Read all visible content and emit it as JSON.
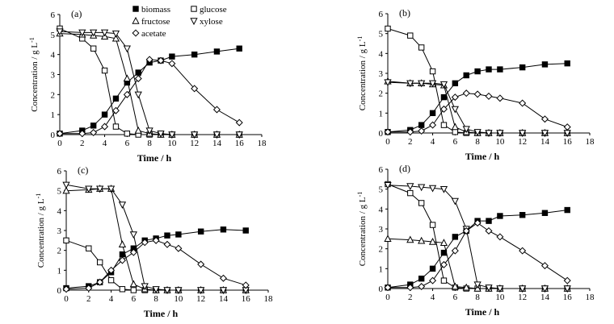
{
  "chart_data": [
    {
      "type": "line",
      "panel_label": "(a)",
      "xlabel": "Time / h",
      "ylabel": "Concentration / g L",
      "ylabel_exponent": "-1",
      "xlim": [
        0,
        18
      ],
      "ylim": [
        0,
        6
      ],
      "x_ticks": [
        0,
        2,
        4,
        6,
        8,
        10,
        12,
        14,
        16,
        18
      ],
      "y_ticks": [
        0,
        1,
        2,
        3,
        4,
        5,
        6
      ],
      "legend": [
        {
          "name": "biomass",
          "marker": "square-filled"
        },
        {
          "name": "glucose",
          "marker": "square-open"
        },
        {
          "name": "fructose",
          "marker": "triangle-up"
        },
        {
          "name": "xylose",
          "marker": "triangle-down"
        },
        {
          "name": "acetate",
          "marker": "diamond"
        }
      ],
      "series": [
        {
          "name": "biomass",
          "marker": "square-filled",
          "x": [
            0,
            2,
            3,
            4,
            5,
            6,
            7,
            8,
            9,
            10,
            12,
            14,
            16
          ],
          "values": [
            0.05,
            0.2,
            0.45,
            1.0,
            1.8,
            2.6,
            3.1,
            3.6,
            3.7,
            3.9,
            4.0,
            4.15,
            4.3
          ]
        },
        {
          "name": "glucose",
          "marker": "square-open",
          "x": [
            0,
            2,
            3,
            4,
            5,
            6,
            7,
            8,
            9,
            10,
            12,
            14,
            16
          ],
          "values": [
            5.3,
            4.8,
            4.3,
            3.2,
            0.4,
            0.05,
            0,
            0,
            0,
            0,
            0,
            0,
            0
          ]
        },
        {
          "name": "fructose",
          "marker": "triangle-up",
          "x": [
            0,
            2,
            3,
            4,
            5,
            6,
            7,
            8,
            9,
            10,
            12,
            14,
            16
          ],
          "values": [
            5.05,
            5.0,
            4.95,
            4.9,
            4.8,
            2.8,
            0.2,
            0.05,
            0,
            0,
            0,
            0,
            0
          ]
        },
        {
          "name": "xylose",
          "marker": "triangle-down",
          "x": [
            0,
            2,
            3,
            4,
            5,
            6,
            7,
            8,
            9,
            10,
            12,
            14,
            16
          ],
          "values": [
            5.15,
            5.1,
            5.1,
            5.1,
            5.05,
            4.3,
            2.0,
            0.2,
            0.05,
            0,
            0,
            0,
            0
          ]
        },
        {
          "name": "acetate",
          "marker": "diamond",
          "x": [
            0,
            2,
            3,
            4,
            5,
            6,
            7,
            8,
            9,
            10,
            12,
            14,
            16
          ],
          "values": [
            0.05,
            0.05,
            0.1,
            0.4,
            1.2,
            2.0,
            2.8,
            3.75,
            3.7,
            3.55,
            2.3,
            1.25,
            0.6
          ]
        }
      ]
    },
    {
      "type": "line",
      "panel_label": "(b)",
      "xlabel": "Time / h",
      "ylabel": "Concentration / g L",
      "ylabel_exponent": "-1",
      "xlim": [
        0,
        18
      ],
      "ylim": [
        0,
        6
      ],
      "x_ticks": [
        0,
        2,
        4,
        6,
        8,
        10,
        12,
        14,
        16,
        18
      ],
      "y_ticks": [
        0,
        1,
        2,
        3,
        4,
        5,
        6
      ],
      "series": [
        {
          "name": "biomass",
          "marker": "square-filled",
          "x": [
            0,
            2,
            3,
            4,
            5,
            6,
            7,
            8,
            9,
            10,
            12,
            14,
            16
          ],
          "values": [
            0.05,
            0.15,
            0.4,
            1.0,
            1.8,
            2.5,
            2.9,
            3.1,
            3.2,
            3.2,
            3.3,
            3.45,
            3.5
          ]
        },
        {
          "name": "glucose",
          "marker": "square-open",
          "x": [
            0,
            2,
            3,
            4,
            5,
            6,
            7,
            8,
            9,
            10,
            12,
            14,
            16
          ],
          "values": [
            5.25,
            4.9,
            4.3,
            3.1,
            0.4,
            0.05,
            0,
            0,
            0,
            0,
            0,
            0,
            0
          ]
        },
        {
          "name": "fructose",
          "marker": "triangle-up",
          "x": [
            0,
            2,
            3,
            4,
            5,
            6,
            7,
            8,
            9,
            10,
            12,
            14,
            16
          ],
          "values": [
            2.6,
            2.5,
            2.5,
            2.45,
            2.4,
            0.3,
            0.05,
            0,
            0,
            0,
            0,
            0,
            0
          ]
        },
        {
          "name": "xylose",
          "marker": "triangle-down",
          "x": [
            0,
            2,
            3,
            4,
            5,
            6,
            7,
            8,
            9,
            10,
            12,
            14,
            16
          ],
          "values": [
            2.55,
            2.5,
            2.5,
            2.5,
            2.45,
            1.2,
            0.2,
            0.05,
            0,
            0,
            0,
            0,
            0
          ]
        },
        {
          "name": "acetate",
          "marker": "diamond",
          "x": [
            0,
            2,
            3,
            4,
            5,
            6,
            7,
            8,
            9,
            10,
            12,
            14,
            16
          ],
          "values": [
            0.05,
            0.05,
            0.1,
            0.4,
            1.2,
            1.8,
            2.0,
            1.95,
            1.85,
            1.75,
            1.5,
            0.7,
            0.3
          ]
        }
      ]
    },
    {
      "type": "line",
      "panel_label": "(c)",
      "xlabel": "Time / h",
      "ylabel": "Concentration / g L",
      "ylabel_exponent": "-1",
      "xlim": [
        0,
        18
      ],
      "ylim": [
        0,
        6
      ],
      "x_ticks": [
        0,
        2,
        4,
        6,
        8,
        10,
        12,
        14,
        16,
        18
      ],
      "y_ticks": [
        0,
        1,
        2,
        3,
        4,
        5,
        6
      ],
      "series": [
        {
          "name": "biomass",
          "marker": "square-filled",
          "x": [
            0,
            2,
            3,
            4,
            5,
            6,
            7,
            8,
            9,
            10,
            12,
            14,
            16
          ],
          "values": [
            0.1,
            0.2,
            0.4,
            0.9,
            1.8,
            2.1,
            2.5,
            2.6,
            2.75,
            2.8,
            2.95,
            3.05,
            3.0
          ]
        },
        {
          "name": "glucose",
          "marker": "square-open",
          "x": [
            0,
            2,
            3,
            4,
            5,
            6,
            7,
            8,
            9,
            10,
            12,
            14,
            16
          ],
          "values": [
            2.5,
            2.1,
            1.4,
            0.5,
            0.05,
            0,
            0,
            0,
            0,
            0,
            0,
            0,
            0
          ]
        },
        {
          "name": "fructose",
          "marker": "triangle-up",
          "x": [
            0,
            2,
            3,
            4,
            5,
            6,
            7,
            8,
            9,
            10,
            12,
            14,
            16
          ],
          "values": [
            5.0,
            5.05,
            5.1,
            5.1,
            2.3,
            0.3,
            0.05,
            0,
            0,
            0,
            0,
            0,
            0
          ]
        },
        {
          "name": "xylose",
          "marker": "triangle-down",
          "x": [
            0,
            2,
            3,
            4,
            5,
            6,
            7,
            8,
            9,
            10,
            12,
            14,
            16
          ],
          "values": [
            5.3,
            5.1,
            5.1,
            5.1,
            4.3,
            2.8,
            0.2,
            0.05,
            0,
            0,
            0,
            0,
            0
          ]
        },
        {
          "name": "acetate",
          "marker": "diamond",
          "x": [
            0,
            2,
            3,
            4,
            5,
            6,
            7,
            8,
            9,
            10,
            12,
            14,
            16
          ],
          "values": [
            0.05,
            0.1,
            0.4,
            1.0,
            1.5,
            1.9,
            2.4,
            2.5,
            2.3,
            2.1,
            1.3,
            0.6,
            0.25
          ]
        }
      ]
    },
    {
      "type": "line",
      "panel_label": "(d)",
      "xlabel": "Time / h",
      "ylabel": "Concentration / g L",
      "ylabel_exponent": "-1",
      "xlim": [
        0,
        18
      ],
      "ylim": [
        0,
        6
      ],
      "x_ticks": [
        0,
        2,
        4,
        6,
        8,
        10,
        12,
        14,
        16,
        18
      ],
      "y_ticks": [
        0,
        1,
        2,
        3,
        4,
        5,
        6
      ],
      "series": [
        {
          "name": "biomass",
          "marker": "square-filled",
          "x": [
            0,
            2,
            3,
            4,
            5,
            6,
            7,
            8,
            9,
            10,
            12,
            14,
            16
          ],
          "values": [
            0.05,
            0.2,
            0.5,
            1.0,
            1.8,
            2.6,
            2.9,
            3.4,
            3.4,
            3.65,
            3.7,
            3.8,
            3.95
          ]
        },
        {
          "name": "glucose",
          "marker": "square-open",
          "x": [
            0,
            2,
            3,
            4,
            5,
            6,
            7,
            8,
            9,
            10,
            12,
            14,
            16
          ],
          "values": [
            5.25,
            4.8,
            4.3,
            3.2,
            0.4,
            0.05,
            0,
            0,
            0,
            0,
            0,
            0,
            0
          ]
        },
        {
          "name": "fructose",
          "marker": "triangle-up",
          "x": [
            0,
            2,
            3,
            4,
            5,
            6,
            7,
            8,
            9,
            10,
            12,
            14,
            16
          ],
          "values": [
            2.5,
            2.45,
            2.4,
            2.35,
            2.3,
            0.1,
            0.05,
            0,
            0,
            0,
            0,
            0,
            0
          ]
        },
        {
          "name": "xylose",
          "marker": "triangle-down",
          "x": [
            0,
            2,
            3,
            4,
            5,
            6,
            7,
            8,
            9,
            10,
            12,
            14,
            16
          ],
          "values": [
            5.2,
            5.15,
            5.1,
            5.05,
            5.0,
            4.4,
            3.0,
            0.2,
            0.05,
            0,
            0,
            0,
            0
          ]
        },
        {
          "name": "acetate",
          "marker": "diamond",
          "x": [
            0,
            2,
            3,
            4,
            5,
            6,
            7,
            8,
            9,
            10,
            12,
            14,
            16
          ],
          "values": [
            0.05,
            0.05,
            0.1,
            0.4,
            1.2,
            1.9,
            2.9,
            3.3,
            2.9,
            2.6,
            1.9,
            1.15,
            0.4
          ]
        }
      ]
    }
  ]
}
